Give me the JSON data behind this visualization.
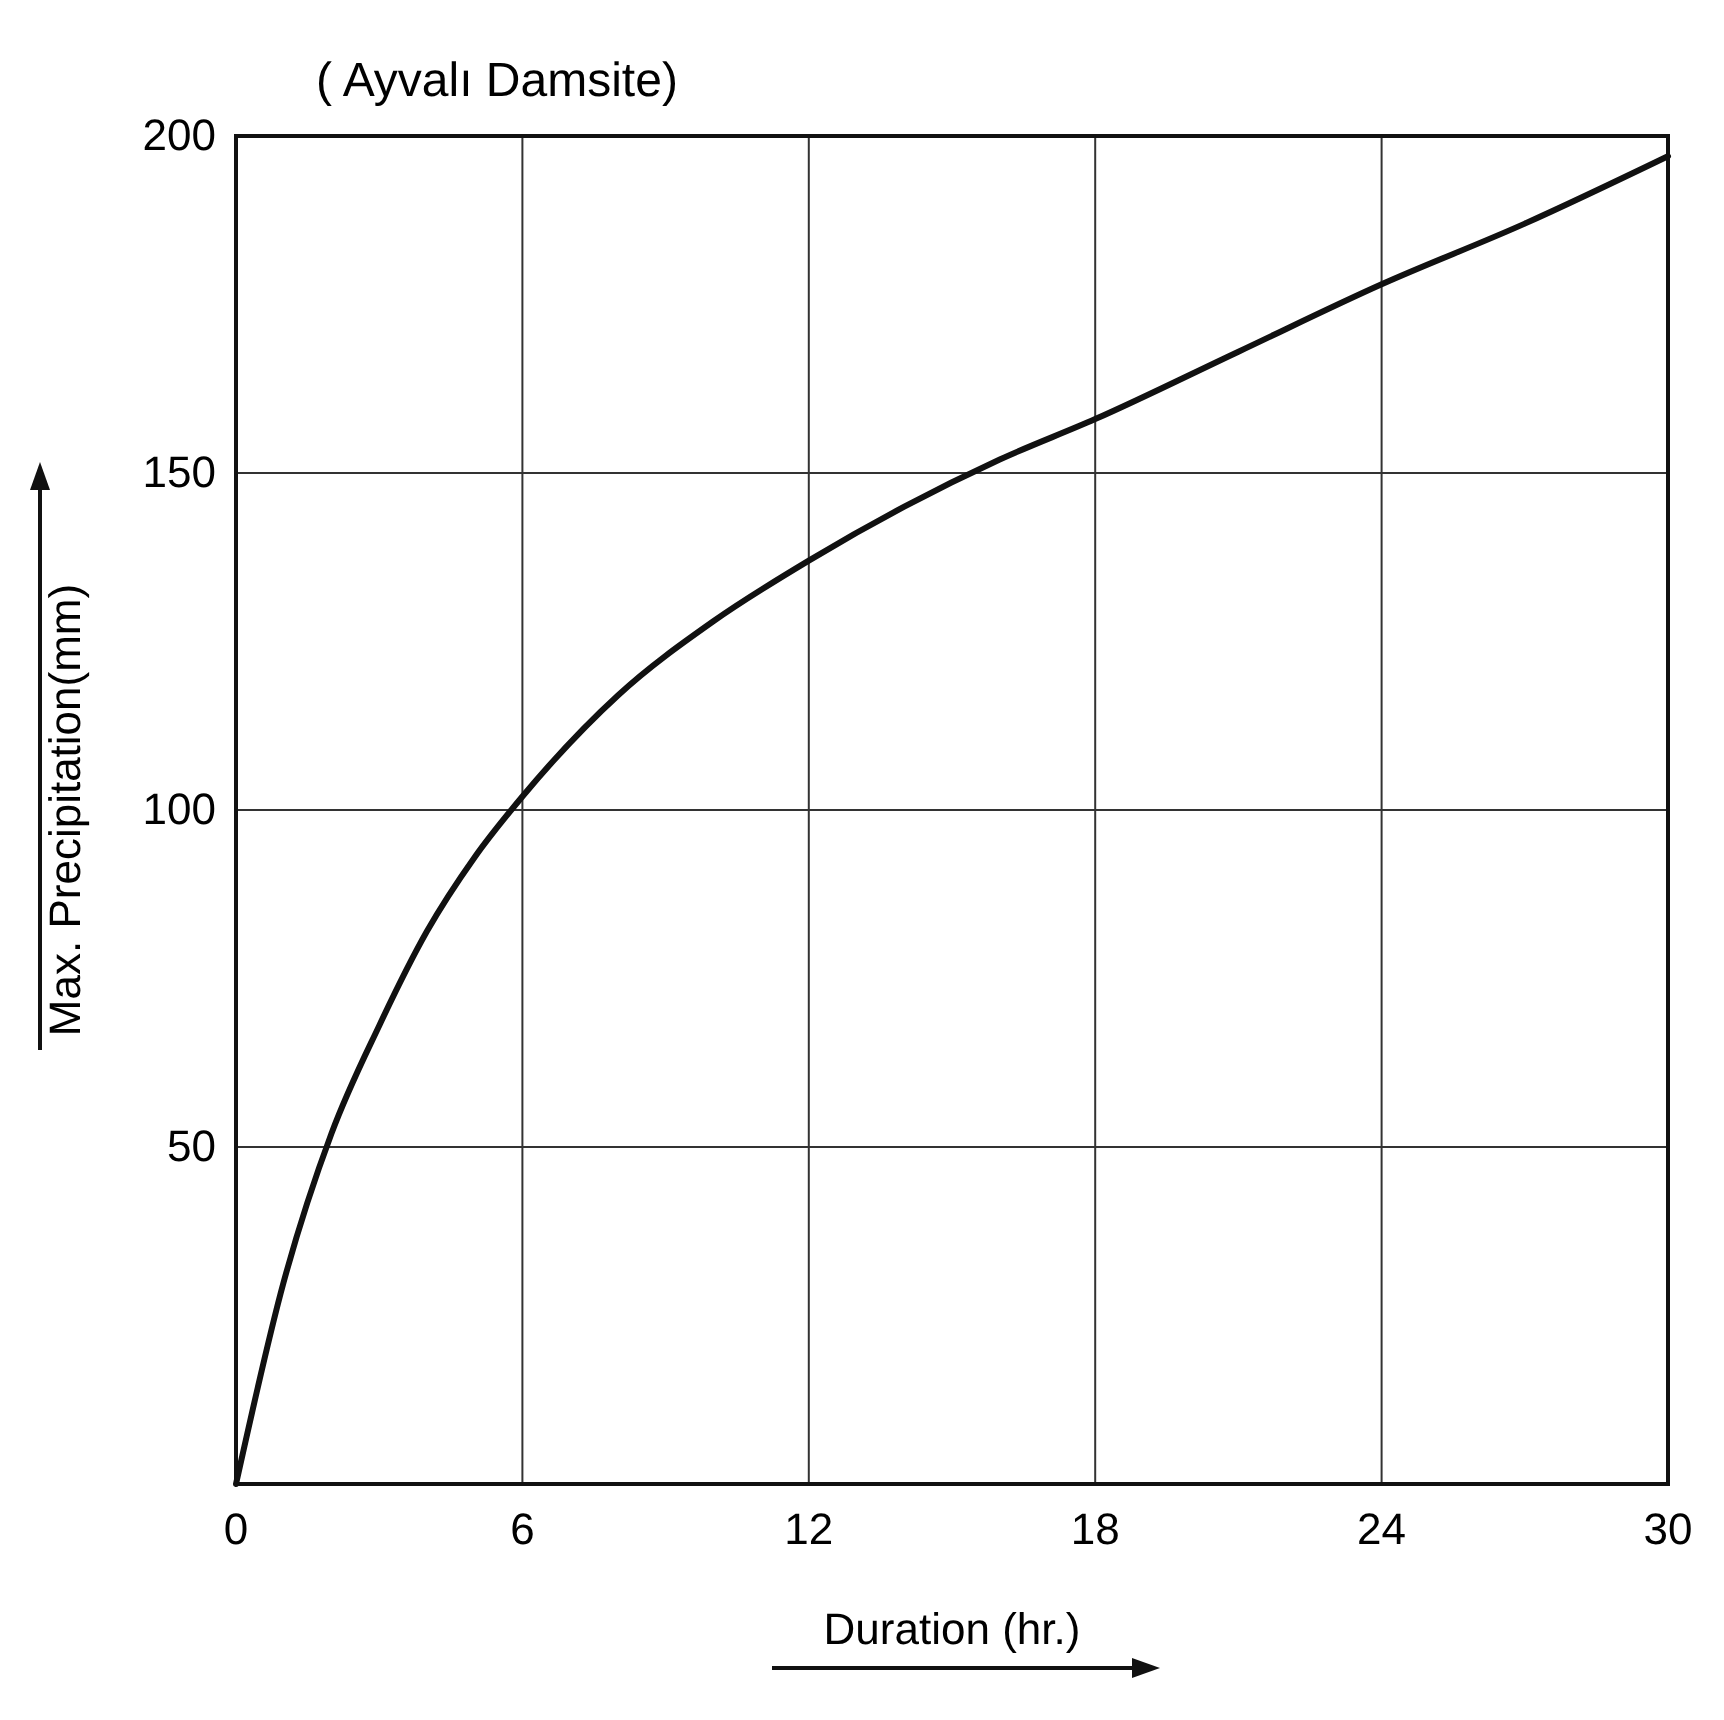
{
  "chart_data": {
    "type": "line",
    "title": "( Ayvalı Damsite)",
    "xlabel": "Duration (hr.)",
    "ylabel": "Max. Precipitation(mm)",
    "x": [
      0,
      1,
      2,
      3,
      4,
      5,
      6,
      8,
      10,
      12,
      14,
      16,
      18,
      21,
      24,
      27,
      30
    ],
    "series": [
      {
        "color": "#111111",
        "values": [
          0,
          30,
          52,
          68,
          82,
          93,
          102,
          117,
          128,
          137,
          145,
          152,
          158,
          168,
          178,
          187,
          197
        ]
      }
    ],
    "xlim": [
      0,
      30
    ],
    "ylim": [
      0,
      200
    ],
    "xticks": [
      0,
      6,
      12,
      18,
      24,
      30
    ],
    "yticks": [
      50,
      100,
      150,
      200
    ],
    "grid": true,
    "marker": "none",
    "line_style": "solid"
  }
}
